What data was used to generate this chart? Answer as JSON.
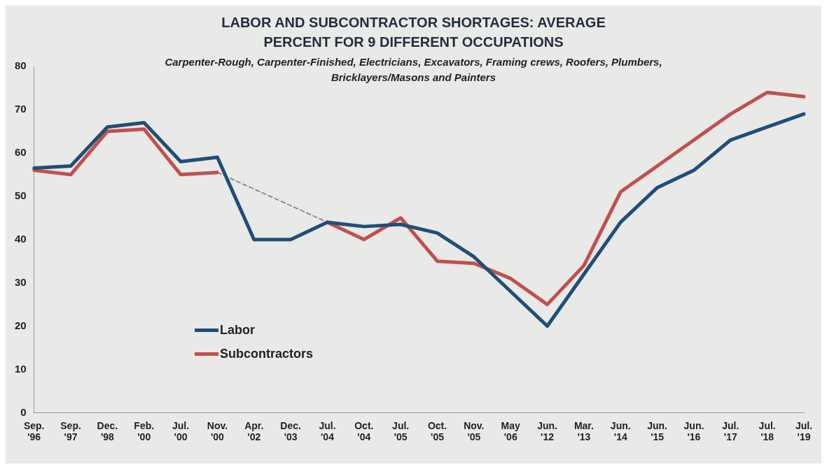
{
  "chart_data": {
    "type": "line",
    "title": "LABOR AND SUBCONTRACTOR SHORTAGES: AVERAGE PERCENT FOR 9 DIFFERENT OCCUPATIONS",
    "subtitle": "Carpenter-Rough, Carpenter-Finished, Electricians,  Excavators, Framing crews, Roofers, Plumbers, Bricklayers/Masons and Painters",
    "categories": [
      "Sep. '96",
      "Sep. '97",
      "Dec. '98",
      "Feb. '00",
      "Jul. '00",
      "Nov. '00",
      "Apr. '02",
      "Dec. '03",
      "Jul. '04",
      "Oct. '04",
      "Jul. '05",
      "Oct. '05",
      "Nov. '05",
      "May '06",
      "Jun. '12",
      "Mar. '13",
      "Jun. '14",
      "Jun. '15",
      "Jun. '16",
      "Jul. '17",
      "Jul. '18",
      "Jul. '19"
    ],
    "series": [
      {
        "name": "Labor",
        "color": "#1f4e79",
        "values": [
          56.5,
          57,
          66,
          67,
          58,
          59,
          40,
          40,
          44,
          43,
          43.5,
          41.5,
          36,
          28,
          20,
          32,
          44,
          52,
          56,
          63,
          66,
          69
        ]
      },
      {
        "name": "Subcontractors",
        "color": "#c0504d",
        "values": [
          56,
          55,
          65,
          65.5,
          55,
          55.5,
          null,
          null,
          44,
          40,
          45,
          35,
          34.5,
          31,
          25,
          34,
          51,
          57,
          63,
          69,
          74,
          73
        ]
      },
      {
        "color": "#8064a2",
        "line_style": "dashed",
        "values": [
          null,
          null,
          null,
          null,
          null,
          55.5,
          null,
          null,
          44,
          null,
          null,
          null,
          null,
          null,
          null,
          null,
          null,
          null,
          null,
          null,
          null,
          null
        ]
      }
    ],
    "ylim": [
      0,
      80
    ],
    "yticks": [
      0,
      10,
      20,
      30,
      40,
      50,
      60,
      70,
      80
    ],
    "grid": false,
    "legend": "bottom left",
    "marker": "none"
  }
}
